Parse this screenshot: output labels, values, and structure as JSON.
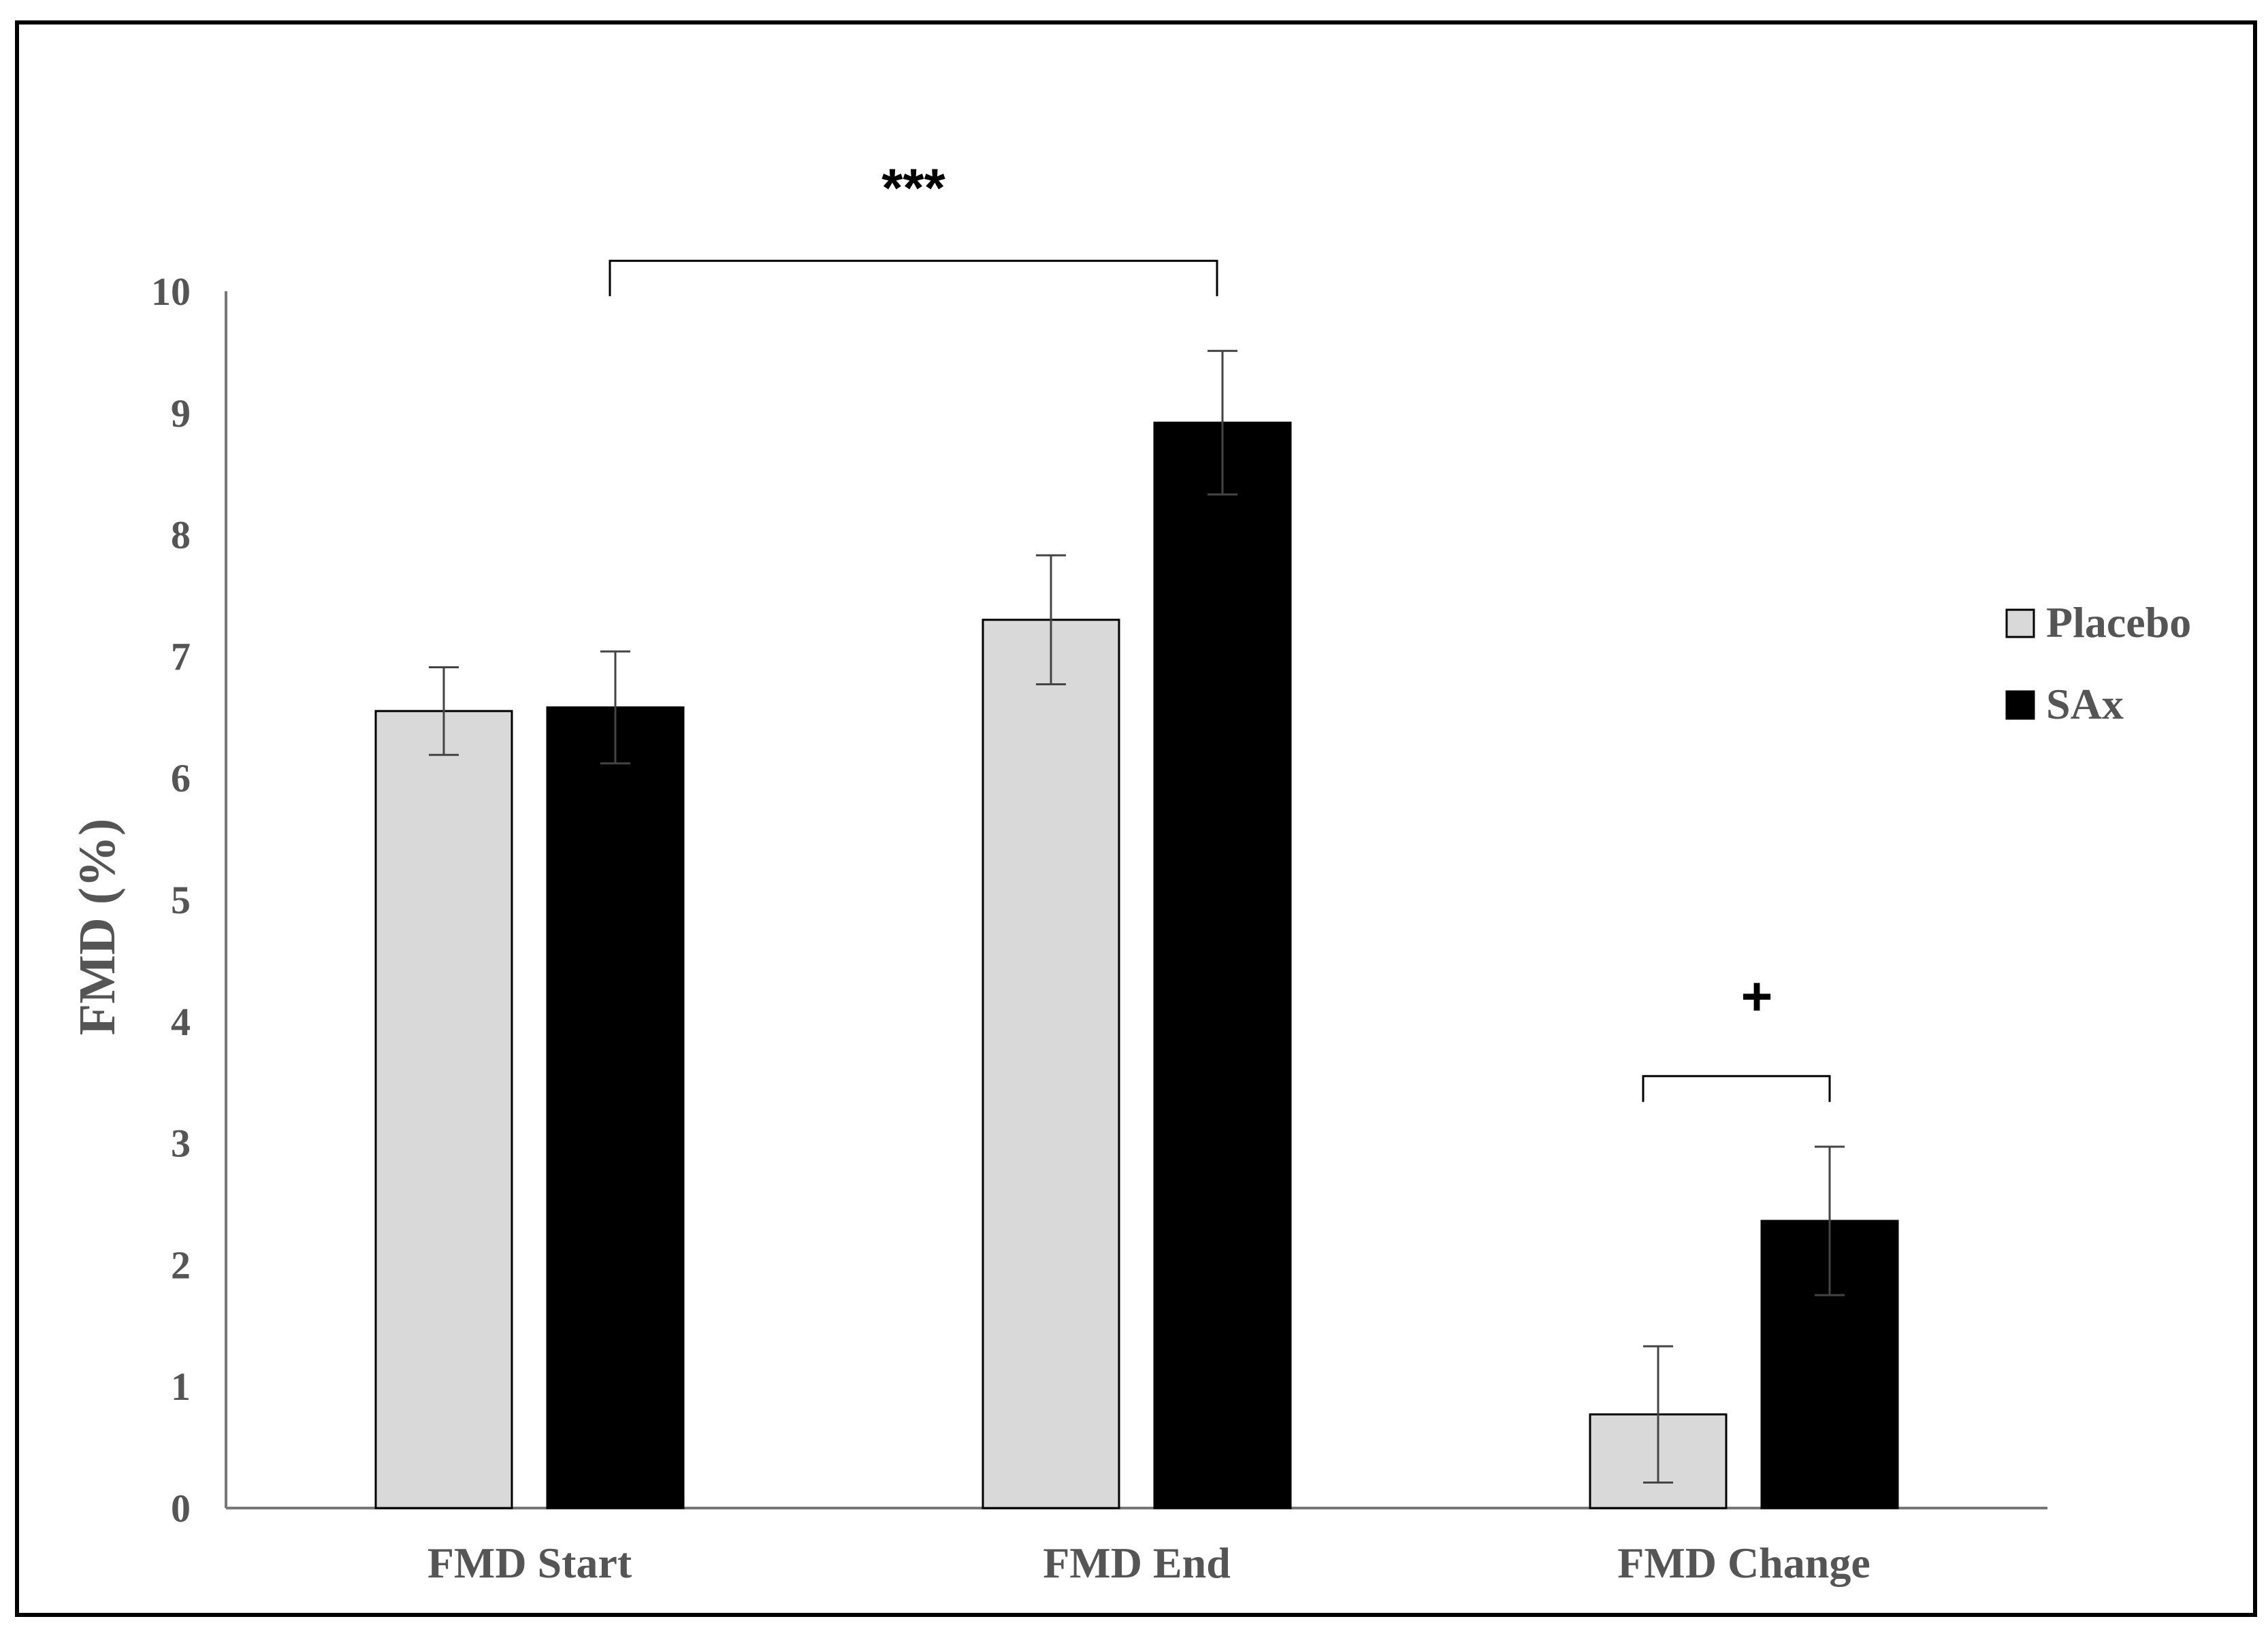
{
  "chart_data": {
    "type": "bar",
    "categories": [
      "FMD Start",
      "FMD End",
      "FMD Change"
    ],
    "series": [
      {
        "name": "Placebo",
        "color": "#d9d9d9",
        "values": [
          6.55,
          7.3,
          0.77
        ],
        "errors": [
          0.36,
          0.53,
          0.56
        ]
      },
      {
        "name": "SAx",
        "color": "#000000",
        "values": [
          6.58,
          8.92,
          2.36
        ],
        "errors": [
          0.46,
          0.59,
          0.61
        ]
      }
    ],
    "ylabel": "FMD (%)",
    "xlabel": "",
    "title": "",
    "ylim": [
      0,
      10
    ],
    "yticks": [
      "0",
      "1",
      "2",
      "3",
      "4",
      "5",
      "6",
      "7",
      "8",
      "9",
      "10"
    ],
    "grid": false,
    "legend_position": "right",
    "annotations": [
      {
        "text": "***",
        "from": "FMD Start",
        "to": "FMD End",
        "bracket_value": 10.25
      },
      {
        "text": "+",
        "from": "FMD Change Placebo",
        "to": "FMD Change SAx",
        "bracket_value": 3.55
      }
    ]
  }
}
